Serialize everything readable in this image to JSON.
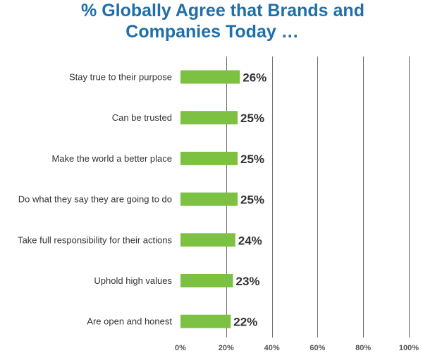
{
  "chart_data": {
    "type": "bar",
    "orientation": "horizontal",
    "title_line1": "% Globally Agree that Brands and",
    "title_line2": "Companies Today …",
    "categories": [
      "Stay true to their purpose",
      "Can be trusted",
      "Make the world a better place",
      "Do what they say they are going to do",
      "Take full responsibility for their actions",
      "Uphold high values",
      "Are open and honest"
    ],
    "values": [
      26,
      25,
      25,
      25,
      24,
      23,
      22
    ],
    "value_labels": [
      "26%",
      "25%",
      "25%",
      "25%",
      "24%",
      "23%",
      "22%"
    ],
    "xlim": [
      0,
      100
    ],
    "xticks": [
      0,
      20,
      40,
      60,
      80,
      100
    ],
    "xtick_labels": [
      "0%",
      "20%",
      "40%",
      "60%",
      "80%",
      "100%"
    ],
    "grid": "vertical",
    "bar_color": "#7dc142",
    "title_color": "#1f6fa8"
  }
}
